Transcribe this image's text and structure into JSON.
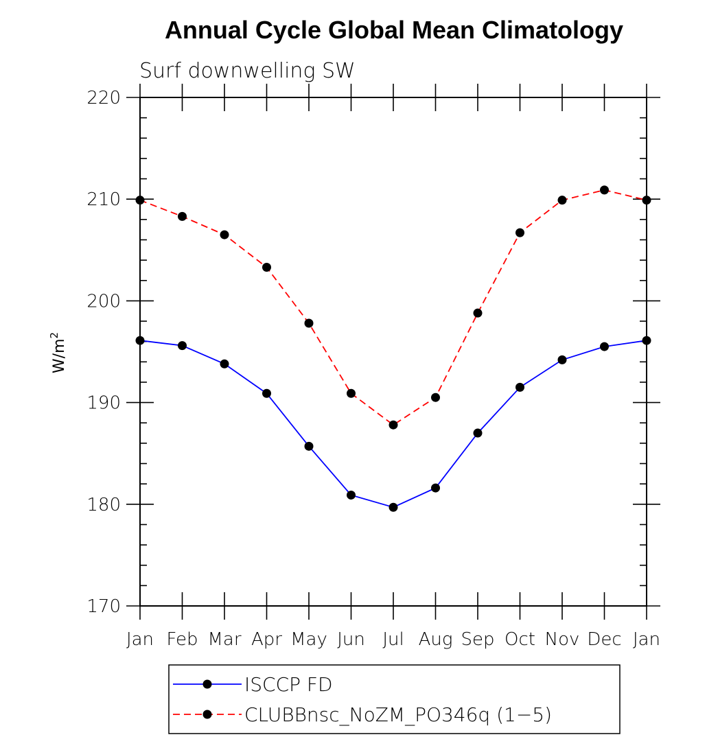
{
  "chart_data": {
    "type": "line",
    "title": "Annual Cycle Global Mean Climatology",
    "subtitle": "Surf downwelling SW",
    "ylabel": "W/m",
    "ylabel_superscript": "2",
    "xlabel": "",
    "ylim": [
      170,
      220
    ],
    "yticks": [
      170,
      180,
      190,
      200,
      210,
      220
    ],
    "categories": [
      "Jan",
      "Feb",
      "Mar",
      "Apr",
      "May",
      "Jun",
      "Jul",
      "Aug",
      "Sep",
      "Oct",
      "Nov",
      "Dec",
      "Jan"
    ],
    "grid": false,
    "legend_position": "bottom",
    "series": [
      {
        "name": "ISCCP FD",
        "color": "#0000ff",
        "line_style": "solid",
        "marker": "filled-circle",
        "values": [
          196.1,
          195.6,
          193.8,
          190.9,
          185.7,
          180.9,
          179.7,
          181.6,
          187.0,
          191.5,
          194.2,
          195.5,
          196.1
        ]
      },
      {
        "name": "CLUBBnsc_NoZM_PO346q (1−5)",
        "color": "#ff0000",
        "line_style": "dashed",
        "marker": "filled-circle",
        "values": [
          209.9,
          208.3,
          206.5,
          203.3,
          197.8,
          190.9,
          187.8,
          190.5,
          198.8,
          206.7,
          209.9,
          210.9,
          209.9
        ]
      }
    ]
  }
}
